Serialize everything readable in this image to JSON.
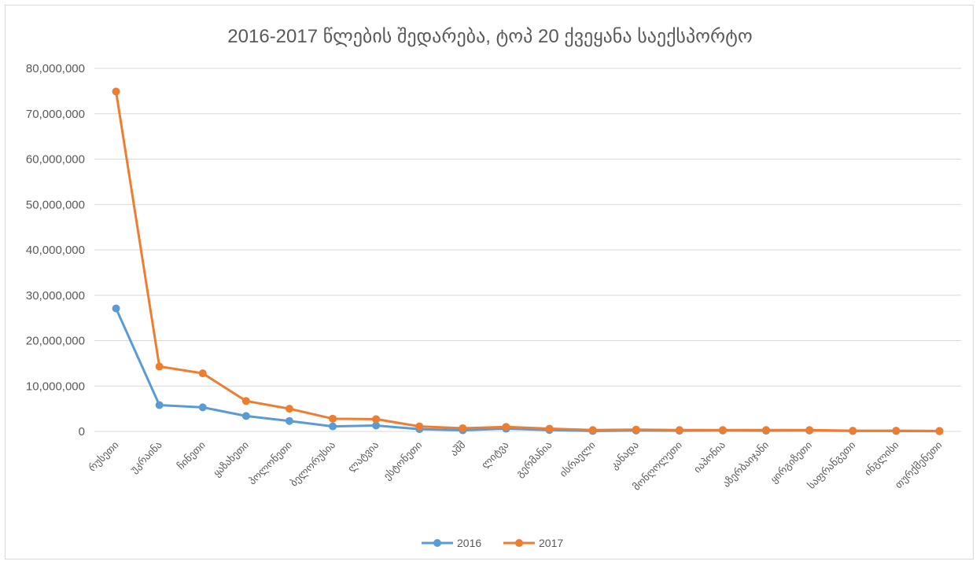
{
  "chart_data": {
    "type": "line",
    "title": "2016-2017 წლების შედარება, ტოპ 20 ქვეყანა საექსპორტო",
    "xlabel": "",
    "ylabel": "",
    "ylim": [
      0,
      80000000
    ],
    "yticks": [
      "0",
      "10,000,000",
      "20,000,000",
      "30,000,000",
      "40,000,000",
      "50,000,000",
      "60,000,000",
      "70,000,000",
      "80,000,000"
    ],
    "grid": true,
    "legend": "bottom",
    "categories": [
      "რუსეთი",
      "უკრაინა",
      "ჩინეთი",
      "ყაზახეთი",
      "პოლონეთი",
      "ბელორუსია",
      "ლატვია",
      "ესტონეთი",
      "აშშ",
      "ლიტვა",
      "გერმანია",
      "ისრაელი",
      "კანადა",
      "მონღოლეთი",
      "იაპონია",
      "აზერბაიჯანი",
      "ყირგიზეთი",
      "საფრანგეთი",
      "ინგლისი",
      "თურქმენეთი"
    ],
    "series": [
      {
        "name": "2016",
        "color": "#5b9bd5",
        "values": [
          27100000,
          5800000,
          5300000,
          3400000,
          2300000,
          1100000,
          1300000,
          500000,
          250000,
          600000,
          300000,
          100000,
          200000,
          150000,
          200000,
          150000,
          200000,
          100000,
          100000,
          50000
        ]
      },
      {
        "name": "2017",
        "color": "#ed7d31",
        "values": [
          74900000,
          14300000,
          12800000,
          6700000,
          5000000,
          2800000,
          2700000,
          1100000,
          700000,
          1000000,
          600000,
          300000,
          400000,
          300000,
          300000,
          300000,
          300000,
          150000,
          150000,
          100000
        ]
      }
    ]
  }
}
